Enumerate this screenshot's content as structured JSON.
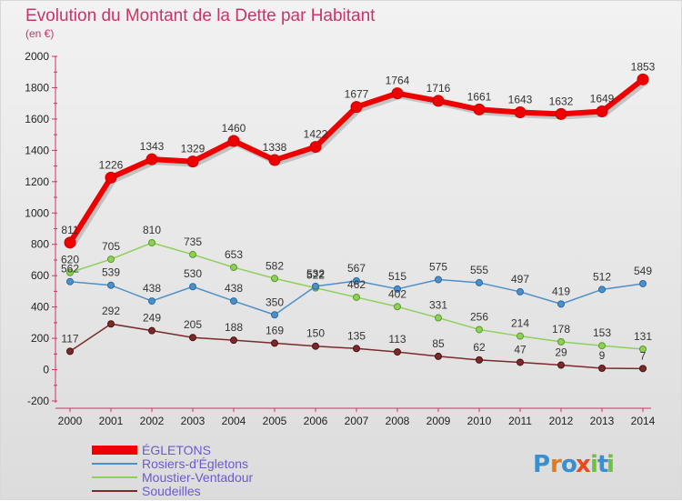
{
  "chart_data": {
    "type": "line",
    "title": "Evolution du Montant de la Dette par Habitant",
    "subtitle": "(en €)",
    "categories": [
      "2000",
      "2001",
      "2002",
      "2003",
      "2004",
      "2005",
      "2006",
      "2007",
      "2008",
      "2009",
      "2010",
      "2011",
      "2012",
      "2013",
      "2014"
    ],
    "ylim": [
      -200,
      2000
    ],
    "yticks": [
      -200,
      0,
      200,
      400,
      600,
      800,
      1000,
      1200,
      1400,
      1600,
      1800,
      2000
    ],
    "grid": false,
    "legend_position": "bottom-left",
    "series": [
      {
        "name": "ÉGLETONS",
        "color": "#ee0000",
        "values": [
          811,
          1226,
          1343,
          1329,
          1460,
          1338,
          1422,
          1677,
          1764,
          1716,
          1661,
          1643,
          1632,
          1649,
          1853
        ]
      },
      {
        "name": "Rosiers-d'Égletons",
        "color": "#4f8fc8",
        "values": [
          562,
          539,
          438,
          530,
          438,
          350,
          532,
          567,
          515,
          575,
          555,
          497,
          419,
          512,
          549
        ]
      },
      {
        "name": "Moustier-Ventadour",
        "color": "#8ed05a",
        "values": [
          620,
          705,
          810,
          735,
          653,
          582,
          522,
          462,
          402,
          331,
          256,
          214,
          178,
          153,
          131
        ]
      },
      {
        "name": "Soudeilles",
        "color": "#7a2a2a",
        "values": [
          117,
          292,
          249,
          205,
          188,
          169,
          150,
          135,
          113,
          85,
          62,
          47,
          29,
          9,
          7
        ]
      }
    ]
  },
  "logo": {
    "letters": [
      "P",
      "r",
      "o",
      "x",
      "i",
      "t",
      "i"
    ],
    "colors": [
      "#3a8fd0",
      "#e07a20",
      "#3a8fd0",
      "#e84a20",
      "#70c040",
      "#3a8fd0",
      "#70c040"
    ]
  }
}
